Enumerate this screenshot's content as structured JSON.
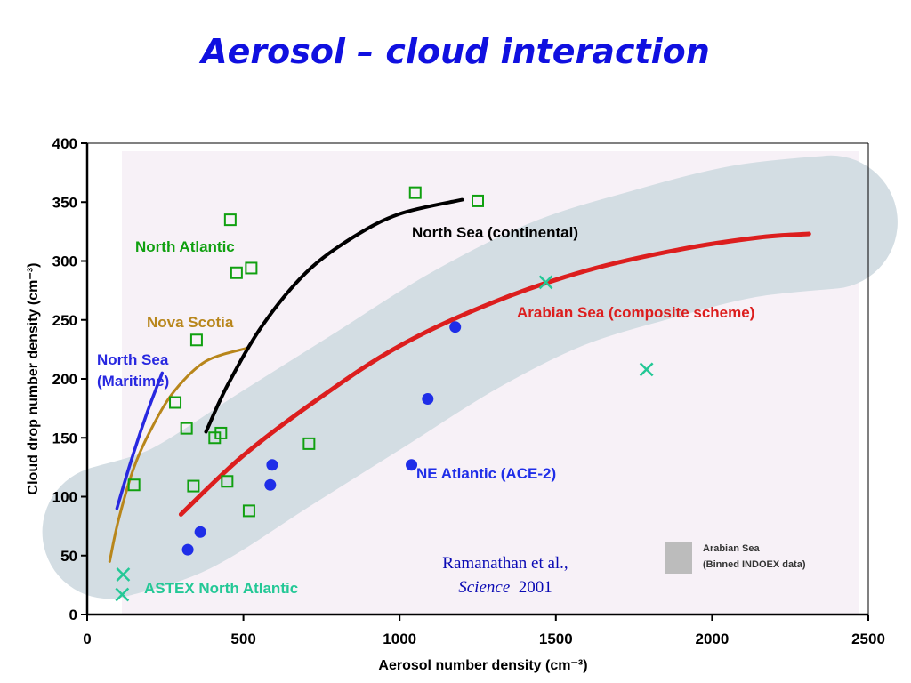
{
  "slide_title": "Aerosol – cloud interaction",
  "citation": {
    "line1": "Ramanathan et al.,",
    "journal": "Science",
    "year": "2001"
  },
  "colors": {
    "title": "#1010e0",
    "north_atlantic": "#10a010",
    "nova_scotia": "#b8861b",
    "north_sea_maritime": "#2828e0",
    "north_sea_continental": "#000000",
    "arabian_sea": "#dc1e1e",
    "ne_atlantic": "#1f2ee8",
    "astex": "#24c896",
    "binned_band": "#d3dde3",
    "legend_swatch": "#bcbcbc",
    "plot_background": "#f7f1f7"
  },
  "chart_data": {
    "type": "scatter",
    "xlabel": "Aerosol number density (cm⁻³)",
    "ylabel": "Cloud drop number density (cm⁻³)",
    "xlim": [
      0,
      2500
    ],
    "ylim": [
      0,
      400
    ],
    "xticks": [
      0,
      500,
      1000,
      1500,
      2000,
      2500
    ],
    "yticks": [
      0,
      50,
      100,
      150,
      200,
      250,
      300,
      350,
      400
    ],
    "legend": {
      "position": "bottom-right",
      "line1": "Arabian Sea",
      "line2": "(Binned INDOEX data)"
    },
    "band_centerline": [
      [
        70,
        70
      ],
      [
        300,
        90
      ],
      [
        600,
        140
      ],
      [
        900,
        190
      ],
      [
        1200,
        240
      ],
      [
        1500,
        280
      ],
      [
        1800,
        305
      ],
      [
        2100,
        325
      ],
      [
        2380,
        333
      ]
    ],
    "series": [
      {
        "name": "North Atlantic",
        "kind": "open-square",
        "points": [
          [
            458,
            335
          ],
          [
            1050,
            358
          ],
          [
            1250,
            351
          ],
          [
            478,
            290
          ],
          [
            525,
            294
          ],
          [
            350,
            233
          ],
          [
            282,
            180
          ],
          [
            318,
            158
          ],
          [
            428,
            154
          ],
          [
            408,
            150
          ],
          [
            710,
            145
          ],
          [
            150,
            110
          ],
          [
            340,
            109
          ],
          [
            448,
            113
          ],
          [
            518,
            88
          ]
        ]
      },
      {
        "name": "Nova Scotia",
        "kind": "curve",
        "points": [
          [
            72,
            45
          ],
          [
            100,
            80
          ],
          [
            150,
            125
          ],
          [
            210,
            160
          ],
          [
            280,
            190
          ],
          [
            380,
            215
          ],
          [
            510,
            226
          ]
        ]
      },
      {
        "name": "North Sea\n(Maritime)",
        "kind": "curve",
        "points": [
          [
            95,
            90
          ],
          [
            140,
            130
          ],
          [
            190,
            170
          ],
          [
            240,
            205
          ]
        ]
      },
      {
        "name": "North Sea (continental)",
        "kind": "curve",
        "points": [
          [
            380,
            155
          ],
          [
            450,
            195
          ],
          [
            560,
            245
          ],
          [
            700,
            290
          ],
          [
            850,
            320
          ],
          [
            1000,
            340
          ],
          [
            1200,
            352
          ]
        ]
      },
      {
        "name": "Arabian Sea (composite scheme)",
        "kind": "curve",
        "points": [
          [
            300,
            85
          ],
          [
            500,
            135
          ],
          [
            750,
            185
          ],
          [
            1000,
            228
          ],
          [
            1300,
            265
          ],
          [
            1600,
            292
          ],
          [
            1900,
            310
          ],
          [
            2150,
            320
          ],
          [
            2310,
            323
          ]
        ]
      },
      {
        "name": "NE Atlantic (ACE-2)",
        "kind": "filled-circle",
        "points": [
          [
            322,
            55
          ],
          [
            362,
            70
          ],
          [
            586,
            110
          ],
          [
            592,
            127
          ],
          [
            1038,
            127
          ],
          [
            1090,
            183
          ],
          [
            1178,
            244
          ]
        ]
      },
      {
        "name": "ASTEX North Atlantic",
        "kind": "x-marker",
        "points": [
          [
            115,
            34
          ],
          [
            112,
            17
          ],
          [
            1468,
            282
          ],
          [
            1790,
            208
          ]
        ]
      }
    ]
  }
}
